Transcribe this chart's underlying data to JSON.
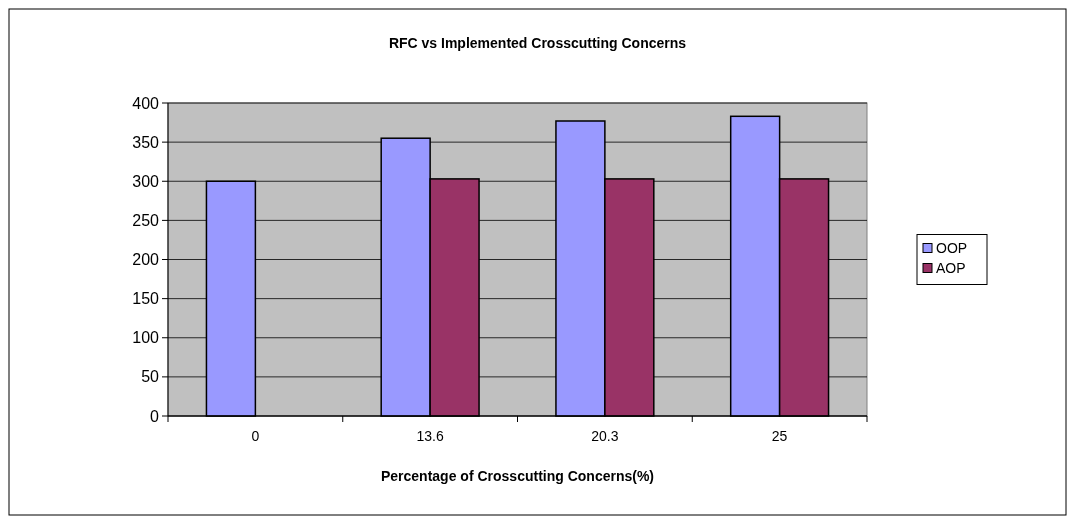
{
  "chart_data": {
    "type": "bar",
    "title": "RFC vs Implemented Crosscutting Concerns",
    "xlabel": "Percentage of Crosscutting Concerns(%)",
    "categories": [
      "0",
      "13.6",
      "20.3",
      "25"
    ],
    "series": [
      {
        "name": "OOP",
        "color": "#9999ff",
        "values": [
          300,
          355,
          377,
          383
        ]
      },
      {
        "name": "AOP",
        "color": "#993366",
        "values": [
          0,
          303,
          303,
          303
        ]
      }
    ],
    "ylim": [
      0,
      400
    ],
    "yticks": [
      0,
      50,
      100,
      150,
      200,
      250,
      300,
      350,
      400
    ],
    "grid": "y",
    "legend": "right"
  }
}
